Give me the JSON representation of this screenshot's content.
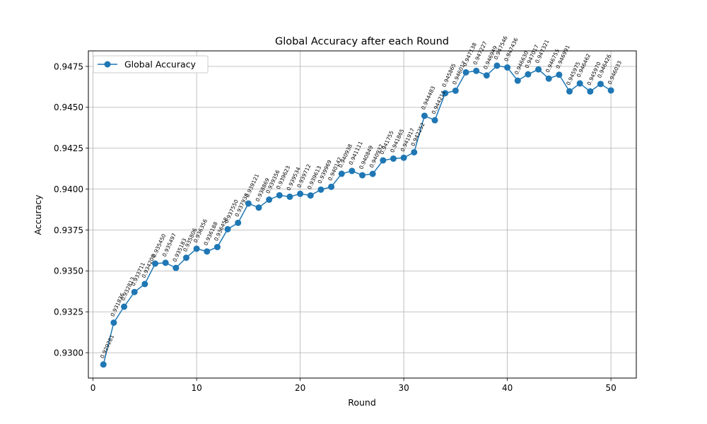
{
  "chart_data": {
    "type": "line",
    "title": "Global Accuracy after each Round",
    "xlabel": "Round",
    "ylabel": "Accuracy",
    "xlim": [
      -0.45,
      52.45
    ],
    "ylim": [
      0.92845,
      0.94845
    ],
    "xticks": [
      0,
      10,
      20,
      30,
      40,
      50
    ],
    "yticks": [
      0.93,
      0.9325,
      0.935,
      0.9375,
      0.94,
      0.9425,
      0.945,
      0.9475
    ],
    "grid": true,
    "legend": "upper-left",
    "series": [
      {
        "name": "Global Accuracy",
        "color": "#1f77b4",
        "marker": "circle",
        "x": [
          1,
          2,
          3,
          4,
          5,
          6,
          7,
          8,
          9,
          10,
          11,
          12,
          13,
          14,
          15,
          16,
          17,
          18,
          19,
          20,
          21,
          22,
          23,
          24,
          25,
          26,
          27,
          28,
          29,
          30,
          31,
          32,
          33,
          34,
          35,
          36,
          37,
          38,
          39,
          40,
          41,
          42,
          43,
          44,
          45,
          46,
          47,
          48,
          49,
          50
        ],
        "y": [
          0.929281,
          0.931836,
          0.932813,
          0.933711,
          0.9342,
          0.93545,
          0.935497,
          0.935183,
          0.935806,
          0.936356,
          0.936188,
          0.936458,
          0.93755,
          0.937938,
          0.939121,
          0.938869,
          0.939356,
          0.939623,
          0.939534,
          0.939712,
          0.939613,
          0.939969,
          0.940142,
          0.940938,
          0.941111,
          0.940849,
          0.940932,
          0.941755,
          0.941865,
          0.941917,
          0.942252,
          0.944483,
          0.944211,
          0.945865,
          0.946017,
          0.947138,
          0.947227,
          0.946949,
          0.947546,
          0.947436,
          0.94663,
          0.947017,
          0.947321,
          0.946755,
          0.946991,
          0.945975,
          0.946462,
          0.94597,
          0.946426,
          0.946033
        ],
        "labels": [
          "0.929281",
          "0.931836",
          "0.932813",
          "0.933711",
          "0.934200",
          "0.935450",
          "0.935497",
          "0.935183",
          "0.935806",
          "0.936356",
          "0.936188",
          "0.936458",
          "0.937550",
          "0.937938",
          "0.939121",
          "0.938869",
          "0.939356",
          "0.939623",
          "0.939534",
          "0.939712",
          "0.939613",
          "0.939969",
          "0.940142",
          "0.940938",
          "0.941111",
          "0.940849",
          "0.940932",
          "0.941755",
          "0.941865",
          "0.941917",
          "0.942252",
          "0.944483",
          "0.944211",
          "0.945865",
          "0.946017",
          "0.947138",
          "0.947227",
          "0.946949",
          "0.947546",
          "0.947436",
          "0.946630",
          "0.947017",
          "0.947321",
          "0.946755",
          "0.946991",
          "0.945975",
          "0.946462",
          "0.945970",
          "0.946426",
          "0.946033"
        ]
      }
    ]
  }
}
